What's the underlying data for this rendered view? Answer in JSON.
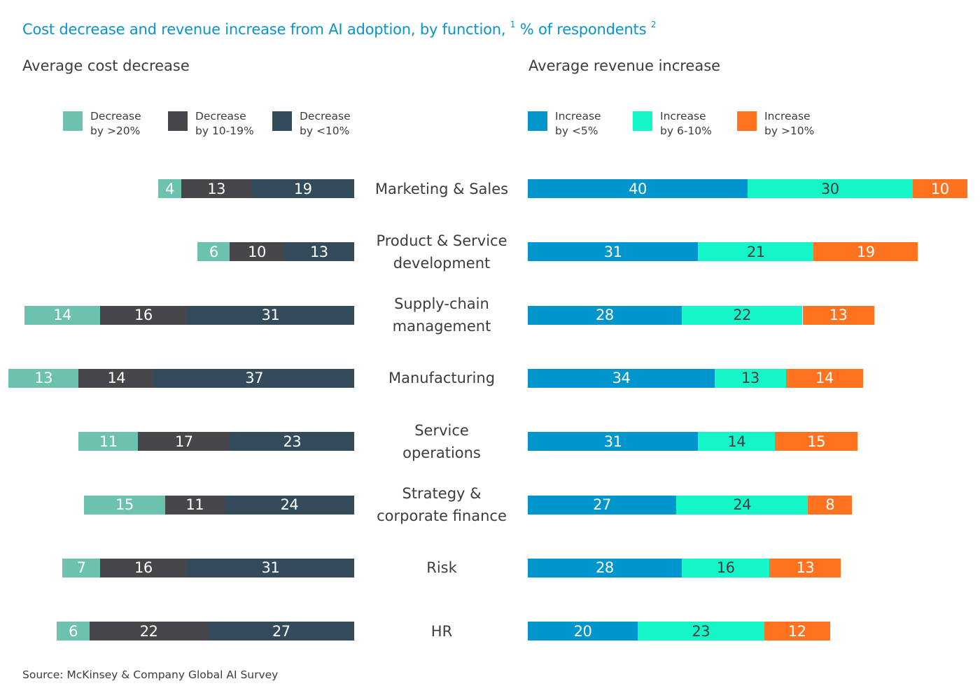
{
  "header": {
    "title": "Cost decrease and revenue increase from AI adoption, by function,",
    "title_note_1": "1",
    "title_suffix": "% of respondents",
    "title_note_2": "2"
  },
  "footer": {
    "source": "Source: McKinsey & Company Global AI Survey"
  },
  "colors": {
    "title": "#0a93cc",
    "text": "#3c3c41",
    "decrease_gt20": "#6cc2ae",
    "decrease_10_19": "#46464b",
    "decrease_lt10": "#334b5b",
    "increase_lt5": "#0095cc",
    "increase_6_10": "#14f5c8",
    "increase_gt10": "#ff7220"
  },
  "chart_data": [
    {
      "type": "bar",
      "orientation": "horizontal",
      "stacked": true,
      "direction": "right-to-left",
      "title": "Average cost decrease",
      "unit": "% of respondents",
      "legend_position": "top",
      "categories": [
        "Marketing & Sales",
        "Product & Service development",
        "Supply-chain management",
        "Manufacturing",
        "Service operations",
        "Strategy & corporate finance",
        "Risk",
        "HR"
      ],
      "series": [
        {
          "name": "Decrease by >20%",
          "values": [
            4,
            6,
            14,
            13,
            11,
            15,
            7,
            6
          ]
        },
        {
          "name": "Decrease by 10-19%",
          "values": [
            13,
            10,
            16,
            14,
            17,
            11,
            16,
            22
          ]
        },
        {
          "name": "Decrease by <10%",
          "values": [
            19,
            13,
            31,
            37,
            23,
            24,
            31,
            27
          ]
        }
      ]
    },
    {
      "type": "bar",
      "orientation": "horizontal",
      "stacked": true,
      "direction": "left-to-right",
      "title": "Average revenue increase",
      "unit": "% of respondents",
      "legend_position": "top",
      "categories": [
        "Marketing & Sales",
        "Product & Service development",
        "Supply-chain management",
        "Manufacturing",
        "Service operations",
        "Strategy & corporate finance",
        "Risk",
        "HR"
      ],
      "series": [
        {
          "name": "Increase by <5%",
          "values": [
            40,
            31,
            28,
            34,
            31,
            27,
            28,
            20
          ]
        },
        {
          "name": "Increase by 6-10%",
          "values": [
            30,
            21,
            22,
            13,
            14,
            24,
            16,
            23
          ]
        },
        {
          "name": "Increase by >10%",
          "values": [
            10,
            19,
            13,
            14,
            15,
            8,
            13,
            12
          ]
        }
      ]
    }
  ],
  "legend": {
    "left": [
      {
        "label": "Decrease\nby >20%"
      },
      {
        "label": "Decrease\nby 10-19%"
      },
      {
        "label": "Decrease\nby <10%"
      }
    ],
    "right": [
      {
        "label": "Increase\nby <5%"
      },
      {
        "label": "Increase\nby 6-10%"
      },
      {
        "label": "Increase\nby >10%"
      }
    ]
  },
  "category_labels": [
    "Marketing & Sales",
    "Product & Service\ndevelopment",
    "Supply-chain\nmanagement",
    "Manufacturing",
    "Service\noperations",
    "Strategy &\ncorporate finance",
    "Risk",
    "HR"
  ]
}
